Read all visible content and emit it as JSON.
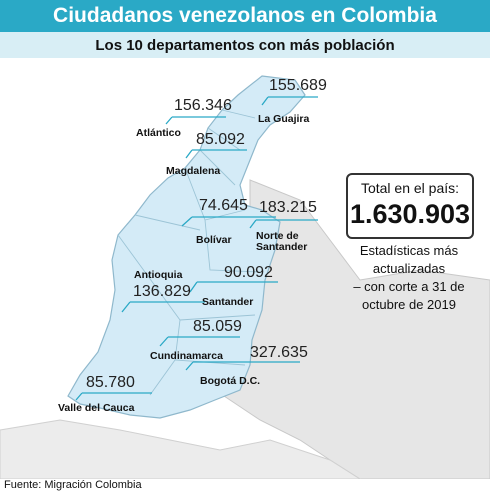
{
  "header": {
    "title": "Ciudadanos venezolanos en Colombia",
    "subtitle": "Los 10 departamentos con más población"
  },
  "total": {
    "label": "Total en el país:",
    "value": "1.630.903"
  },
  "note": {
    "line1": "Estadísticas más",
    "line2": "actualizadas",
    "line3": "– con corte a 31 de",
    "line4": "octubre de 2019"
  },
  "source": "Fuente: Migración Colombia",
  "departments": [
    {
      "name": "La Guajira",
      "value": "155.689"
    },
    {
      "name": "Atlántico",
      "value": "156.346"
    },
    {
      "name": "Magdalena",
      "value": "85.092"
    },
    {
      "name": "Bolívar",
      "value": "74.645"
    },
    {
      "name_line1": "Norte de",
      "name_line2": "Santander",
      "value": "183.215"
    },
    {
      "name": "Antioquia",
      "value": "136.829"
    },
    {
      "name": "Santander",
      "value": "90.092"
    },
    {
      "name": "Cundinamarca",
      "value": "85.059"
    },
    {
      "name": "Bogotá D.C.",
      "value": "327.635"
    },
    {
      "name": "Valle del Cauca",
      "value": "85.780"
    }
  ],
  "colors": {
    "accent": "#2aa9c6",
    "highlight_fill": "#cfe8f5",
    "land": "#e7e7e7"
  }
}
